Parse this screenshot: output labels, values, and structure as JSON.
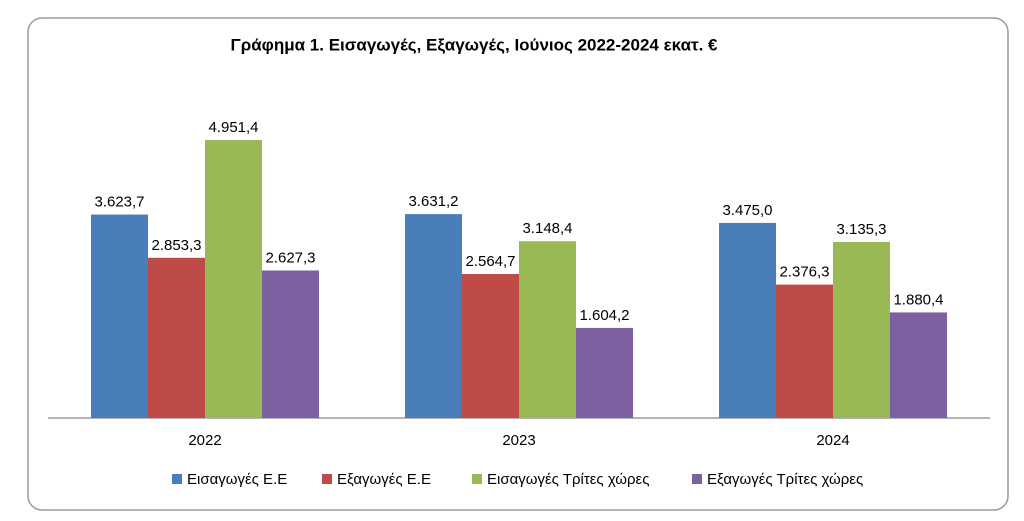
{
  "chart_data": {
    "type": "bar",
    "title": "Γράφημα 1. Εισαγωγές, Εξαγωγές, Ιούνιος 2022-2024 εκατ. €",
    "categories": [
      "2022",
      "2023",
      "2024"
    ],
    "series": [
      {
        "name": "Εισαγωγές Ε.Ε",
        "color": "#4a7ebb",
        "values": [
          3623.7,
          3631.2,
          3475.0
        ],
        "value_labels": [
          "3.623,7",
          "3.631,2",
          "3.475,0"
        ]
      },
      {
        "name": "Εξαγωγές  Ε.Ε",
        "color": "#be4b48",
        "values": [
          2853.3,
          2564.7,
          2376.3
        ],
        "value_labels": [
          "2.853,3",
          "2.564,7",
          "2.376,3"
        ]
      },
      {
        "name": "Εισαγωγές Τρίτες χώρες",
        "color": "#98b954",
        "values": [
          4951.4,
          3148.4,
          3135.3
        ],
        "value_labels": [
          "4.951,4",
          "3.148,4",
          "3.135,3"
        ]
      },
      {
        "name": "Εξαγωγές Τρίτες χώρες",
        "color": "#7d60a0",
        "values": [
          2627.3,
          1604.2,
          1880.4
        ],
        "value_labels": [
          "2.627,3",
          "1.604,2",
          "1.880,4"
        ]
      }
    ]
  }
}
